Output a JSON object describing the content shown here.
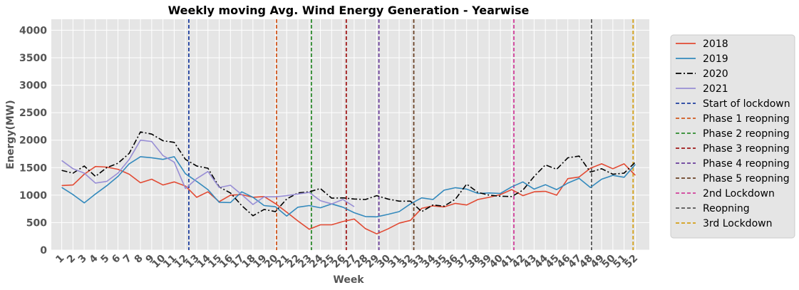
{
  "chart_data": {
    "type": "line",
    "title": "Weekly moving Avg. Wind Energy Generation - Yearwise",
    "xlabel": "Week",
    "ylabel": "Energy(MW)",
    "x": [
      1,
      2,
      3,
      4,
      5,
      6,
      7,
      8,
      9,
      10,
      11,
      12,
      13,
      14,
      15,
      16,
      17,
      18,
      19,
      20,
      21,
      22,
      23,
      24,
      25,
      26,
      27,
      28,
      29,
      30,
      31,
      32,
      33,
      34,
      35,
      36,
      37,
      38,
      39,
      40,
      41,
      42,
      43,
      44,
      45,
      46,
      47,
      48,
      49,
      50,
      51,
      52
    ],
    "ylim": [
      0,
      4200
    ],
    "yticks": [
      0,
      500,
      1000,
      1500,
      2000,
      2500,
      3000,
      3500,
      4000
    ],
    "grid": true,
    "legend_position": "outside right",
    "series": [
      {
        "name": "2018",
        "color": "#E24A33",
        "style": "solid",
        "values": [
          1175,
          1185,
          1380,
          1520,
          1510,
          1470,
          1380,
          1225,
          1290,
          1185,
          1240,
          1165,
          960,
          1060,
          880,
          1000,
          1010,
          960,
          975,
          845,
          690,
          530,
          380,
          460,
          460,
          520,
          565,
          390,
          295,
          385,
          490,
          540,
          760,
          805,
          785,
          850,
          820,
          920,
          960,
          1010,
          1100,
          990,
          1060,
          1070,
          1000,
          1300,
          1330,
          1490,
          1570,
          1480,
          1570,
          1360
        ]
      },
      {
        "name": "2019",
        "color": "#348ABD",
        "style": "solid",
        "values": [
          1140,
          1010,
          860,
          1020,
          1170,
          1340,
          1570,
          1700,
          1680,
          1650,
          1700,
          1390,
          1250,
          1100,
          870,
          865,
          1060,
          960,
          810,
          790,
          620,
          780,
          810,
          770,
          840,
          780,
          680,
          610,
          605,
          650,
          700,
          840,
          950,
          920,
          1090,
          1135,
          1110,
          1030,
          1040,
          1030,
          1150,
          1240,
          1110,
          1190,
          1100,
          1220,
          1305,
          1140,
          1290,
          1360,
          1325,
          1560
        ]
      },
      {
        "name": "2020",
        "color": "#000000",
        "style": "dashdot",
        "values": [
          1450,
          1400,
          1530,
          1340,
          1500,
          1580,
          1760,
          2150,
          2110,
          1990,
          1960,
          1650,
          1530,
          1490,
          1150,
          1040,
          810,
          625,
          740,
          700,
          930,
          1040,
          1060,
          1120,
          945,
          950,
          930,
          920,
          990,
          930,
          890,
          890,
          700,
          820,
          800,
          925,
          1200,
          1050,
          1000,
          980,
          975,
          1090,
          1340,
          1550,
          1470,
          1680,
          1710,
          1420,
          1480,
          1380,
          1400,
          1600
        ]
      },
      {
        "name": "2021",
        "color": "#988ED5",
        "style": "solid",
        "values": [
          1630,
          1480,
          1400,
          1220,
          1250,
          1400,
          1650,
          2000,
          1975,
          1720,
          1600,
          1120,
          1300,
          1430,
          1140,
          1180,
          1010,
          830,
          970,
          970,
          990,
          1020,
          1050,
          900,
          840,
          920,
          790,
          null,
          null,
          null,
          null,
          null,
          null,
          null,
          null,
          null,
          null,
          null,
          null,
          null,
          null,
          null,
          null,
          null,
          null,
          null,
          null,
          null,
          null,
          null,
          null,
          null
        ]
      }
    ],
    "vlines": [
      {
        "name": "Start of lockdown",
        "x": 12.3,
        "color": "#1F3FA0"
      },
      {
        "name": "Phase 1 reopning",
        "x": 20.1,
        "color": "#D2581E"
      },
      {
        "name": "Phase 2 reopning",
        "x": 23.2,
        "color": "#2E8B2E"
      },
      {
        "name": "Phase 3 reopning",
        "x": 26.3,
        "color": "#A01818"
      },
      {
        "name": "Phase 4 reopning",
        "x": 29.2,
        "color": "#6A3D9A"
      },
      {
        "name": "Phase 5 reopning",
        "x": 32.3,
        "color": "#6B4226"
      },
      {
        "name": "2nd Lockdown",
        "x": 41.2,
        "color": "#D13F9A"
      },
      {
        "name": "Reopning",
        "x": 48.1,
        "color": "#555555"
      },
      {
        "name": "3rd Lockdown",
        "x": 51.8,
        "color": "#D4A017"
      }
    ]
  }
}
